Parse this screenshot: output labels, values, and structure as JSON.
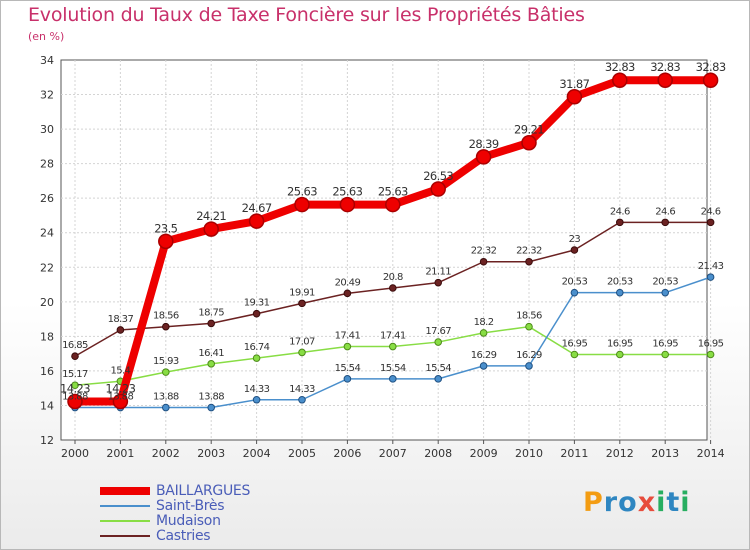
{
  "header": {
    "title": "Evolution du Taux de Taxe Foncière sur les Propriétés Bâties",
    "unit": "(en %)"
  },
  "logo": {
    "text": "Proxiti",
    "colors": [
      "#f39c12",
      "#2e86c1",
      "#e74c3c",
      "#27ae60"
    ]
  },
  "chart_data": {
    "type": "line",
    "x": [
      "2000",
      "2001",
      "2002",
      "2003",
      "2004",
      "2005",
      "2006",
      "2007",
      "2008",
      "2009",
      "2010",
      "2011",
      "2012",
      "2013",
      "2014"
    ],
    "ylim": [
      12,
      34
    ],
    "yticks": [
      12,
      14,
      16,
      18,
      20,
      22,
      24,
      26,
      28,
      30,
      32,
      34
    ],
    "grid": true,
    "legend_position": "bottom-left",
    "series": [
      {
        "name": "BAILLARGUES",
        "color": "#ee0000",
        "values": [
          14.23,
          14.23,
          23.5,
          24.21,
          24.67,
          25.63,
          25.63,
          25.63,
          26.53,
          28.39,
          29.21,
          31.87,
          32.83,
          32.83,
          32.83
        ],
        "labels": [
          "14.23",
          "14.23",
          "23.5",
          "24.21",
          "24.67",
          "25.63",
          "25.63",
          "25.63",
          "26.53",
          "28.39",
          "29.21",
          "31.87",
          "32.83",
          "32.83",
          "32.83"
        ]
      },
      {
        "name": "Saint-Brès",
        "color": "#4a8fcc",
        "values": [
          13.88,
          13.88,
          13.88,
          13.88,
          14.33,
          14.33,
          15.54,
          15.54,
          15.54,
          16.29,
          16.29,
          20.53,
          20.53,
          20.53,
          21.43
        ],
        "labels": [
          "13.88",
          "13.88",
          "13.88",
          "13.88",
          "14.33",
          "14.33",
          "15.54",
          "15.54",
          "15.54",
          "16.29",
          "16.29",
          "20.53",
          "20.53",
          "20.53",
          "21.43"
        ]
      },
      {
        "name": "Mudaison",
        "color": "#88dd44",
        "values": [
          15.17,
          15.4,
          15.93,
          16.41,
          16.74,
          17.07,
          17.41,
          17.41,
          17.67,
          18.2,
          18.56,
          16.95,
          16.95,
          16.95,
          16.95
        ],
        "labels": [
          "15.17",
          "15.4",
          "15.93",
          "16.41",
          "16.74",
          "17.07",
          "17.41",
          "17.41",
          "17.67",
          "18.2",
          "18.56",
          "16.95",
          "16.95",
          "16.95",
          "16.95"
        ]
      },
      {
        "name": "Castries",
        "color": "#6b2222",
        "values": [
          16.85,
          18.37,
          18.56,
          18.75,
          19.31,
          19.91,
          20.49,
          20.8,
          21.11,
          22.32,
          22.32,
          23.0,
          24.6,
          24.6,
          24.6
        ],
        "labels": [
          "16.85",
          "18.37",
          "18.56",
          "18.75",
          "19.31",
          "19.91",
          "20.49",
          "20.8",
          "21.11",
          "22.32",
          "22.32",
          "23",
          "24.6",
          "24.6",
          "24.6"
        ]
      }
    ]
  }
}
